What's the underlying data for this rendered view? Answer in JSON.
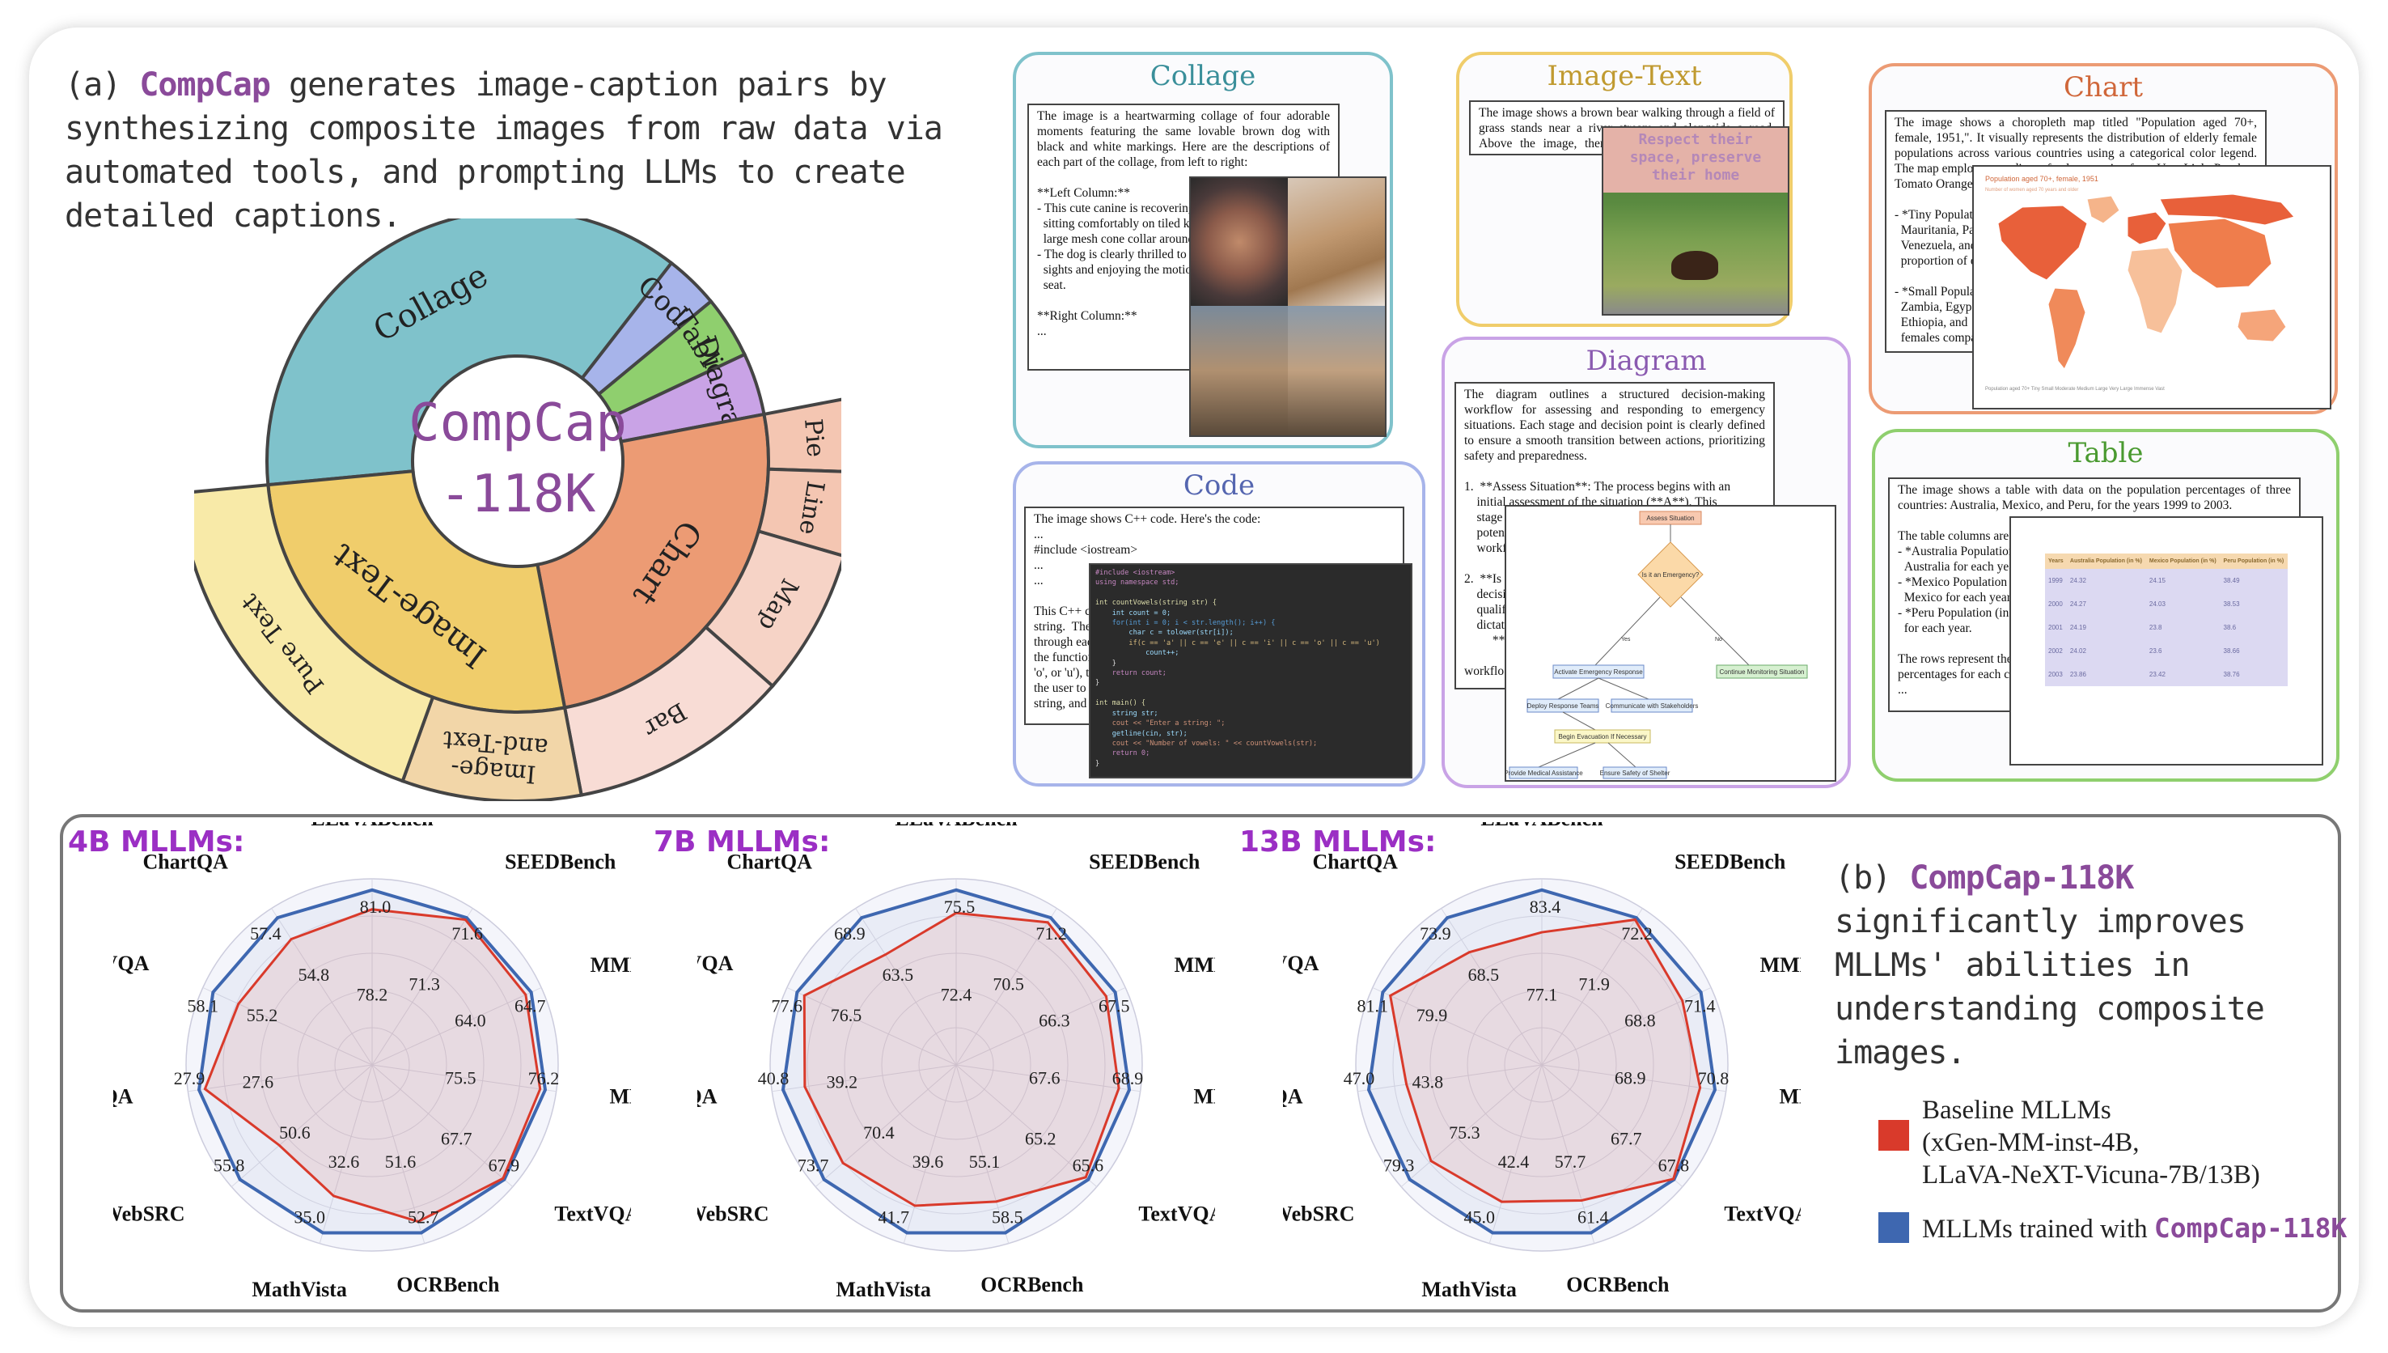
{
  "panel_a": {
    "caption_label": "(a) ",
    "caption_name": "CompCap",
    "caption_rest": " generates image-caption pairs by synthesizing composite images from raw data via automated tools, and prompting LLMs to create detailed captions.",
    "donut_center_line1": "CompCap",
    "donut_center_line2": "-118K",
    "inner_segments": [
      {
        "label": "Collage",
        "value": 37,
        "color": "#7fc2cb"
      },
      {
        "label": "Code",
        "value": 3.5,
        "color": "#a7b4ea"
      },
      {
        "label": "Table",
        "value": 4,
        "color": "#8fcf6e"
      },
      {
        "label": "Diagram",
        "value": 4,
        "color": "#c9a3e6"
      },
      {
        "label": "Chart",
        "value": 25,
        "color": "#ec9b74"
      },
      {
        "label": "Image-Text",
        "value": 26.5,
        "color": "#f0cd6b"
      }
    ],
    "outer_segments": [
      {
        "label": "Pie",
        "value": 3.5,
        "color": "#f4c6b2"
      },
      {
        "label": "Line",
        "value": 4,
        "color": "#f4c6b2"
      },
      {
        "label": "Map",
        "value": 7,
        "color": "#f6d3c6"
      },
      {
        "label": "Bar",
        "value": 10.5,
        "color": "#f8dcd5"
      },
      {
        "label": "Image-\nand-Text",
        "value": 8.5,
        "color": "#f2d6a8"
      },
      {
        "label": "Pure Text",
        "value": 18,
        "color": "#f8eaa8"
      }
    ]
  },
  "cards": {
    "collage": {
      "title": "Collage",
      "text": "The image is a heartwarming collage of four adorable moments featuring the same lovable brown dog with black and white markings. Here are the descriptions of each part of the collage, from left to right:\n\n**Left Column:**\n- This cute canine is recovering\n  sitting comfortably on tiled kit\n  large mesh cone collar around its\n- The dog is clearly thrilled to be\n  sights and enjoying the motion\n  seat.\n\n**Right Column:**\n..."
    },
    "image_text": {
      "title": "Image-Text",
      "text": "The image shows a brown bear walking through a field of grass stands near a river stream and alongside a road. Above the image, there is text \"Respect their space, preserve their home.\"",
      "overlay": "Respect their\nspace, preserve\ntheir home"
    },
    "chart": {
      "title": "Chart",
      "text": "The image shows a choropleth map titled \"Population aged 70+, female, 1951,\". It visually represents the distribution of elderly female populations across various countries using a categorical color legend. The map employs a gradient of colors ranging from Very Light Peach to Tomato Orange to indica\n\n- *Tiny Populat\n  Mauritania, Pak\n  Venezuela, and\n  proportion of eld\n\n- *Small Populat\n  Zambia, Egyp\n  Ethiopia, and\n  females compa\n...",
      "map_title": "Population aged 70+, female, 1951",
      "map_subtitle": "Number of women aged 70 years and older",
      "map_legend": "Population aged 70+    Tiny    Small    Moderate    Medium    Large    Very Large    Immense    Vast",
      "map_countries": [
        {
          "name": "North America",
          "fill": "#e8603a"
        },
        {
          "name": "Greenland",
          "fill": "#f5b48a"
        },
        {
          "name": "South America",
          "fill": "#f08a5a"
        },
        {
          "name": "Europe",
          "fill": "#e8603a"
        },
        {
          "name": "Africa",
          "fill": "#f7c09a"
        },
        {
          "name": "Asia",
          "fill": "#ef7d4c"
        },
        {
          "name": "Russia",
          "fill": "#e8603a"
        },
        {
          "name": "Australia",
          "fill": "#f5a57a"
        }
      ]
    },
    "diagram": {
      "title": "Diagram",
      "text": "The diagram outlines a structured decision-making workflow for assessing and responding to emergency situations. Each stage and decision point is clearly defined to ensure a smooth transition between actions, prioritizing safety and preparedness.\n\n1.  **Assess Situation**: The process begins with an\n    initial assessment of the situation (**A**). This\n    stage\n    poten\n    workf\n\n2.  **Is\n    decision\n    qualifies\n    dictates th\n         **\n\nworkflo\n...",
      "nodes": {
        "assess": "Assess Situation",
        "decision": "Is it an Emergency?",
        "yes": "Yes",
        "no": "No",
        "activate": "Activate Emergency Response",
        "monitor": "Continue Monitoring Situation",
        "deploy": "Deploy Response Teams",
        "communicate": "Communicate with Stakeholders",
        "evac": "Begin Evacuation If Necessary",
        "medical": "Provide Medical Assistance",
        "shelter": "Ensure Safety of Shelter"
      }
    },
    "code": {
      "title": "Code",
      "text": "The image shows C++ code. Here's the code:\n...\n#include <iostream>\n...\n...\n\nThis C++ c\nstring.  The\nthrough each\nthe function\n'o', or 'u'), th\nthe user to e\nstring, and th",
      "code_lines": [
        "#include <iostream>",
        "using namespace std;",
        "",
        "int countVowels(string str) {",
        "    int count = 0;",
        "    for(int i = 0; i < str.length(); i++) {",
        "        char c = tolower(str[i]);",
        "        if(c == 'a' || c == 'e' || c == 'i' || c == 'o' || c == 'u')",
        "            count++;",
        "    }",
        "    return count;",
        "}",
        "",
        "int main() {",
        "    string str;",
        "    cout << \"Enter a string: \";",
        "    getline(cin, str);",
        "    cout << \"Number of vowels: \" << countVowels(str);",
        "    return 0;",
        "}"
      ]
    },
    "table": {
      "title": "Table",
      "text": "The image shows a table with data on the population percentages of three countries: Australia, Mexico, and Peru, for the years 1999 to 2003.\n\nThe table columns are a\n- *Australia Population\n  Australia for each year.\n- *Mexico Population (\n  Mexico for each year.\n- *Peru Population (in %\n  for each year.\n\nThe rows represent the\npercentages for each co\n...",
      "columns": [
        "Years",
        "Australia Population (in %)",
        "Mexico Population (in %)",
        "Peru Population (in %)"
      ],
      "rows": [
        [
          "1999",
          "24.32",
          "24.15",
          "38.49"
        ],
        [
          "2000",
          "24.27",
          "24.03",
          "38.53"
        ],
        [
          "2001",
          "24.19",
          "23.8",
          "38.6"
        ],
        [
          "2002",
          "24.02",
          "23.6",
          "38.66"
        ],
        [
          "2003",
          "23.86",
          "23.42",
          "38.76"
        ]
      ]
    }
  },
  "colors": {
    "baseline": "#d93a2b",
    "compcap": "#3e67b0",
    "title_purple": "#9b2fc4"
  },
  "chart_data": [
    {
      "type": "radar",
      "title": "4B MLLMs:",
      "axes": [
        "LLaVABench",
        "SEEDBench",
        "MME",
        "MMBench",
        "TextVQA",
        "OCRBench",
        "MathVista",
        "WebSRC",
        "InfoVQA",
        "DocVQA",
        "ChartQA"
      ],
      "series": [
        {
          "name": "Baseline MLLMs",
          "values": [
            78.2,
            71.3,
            64.0,
            75.5,
            67.7,
            51.6,
            32.6,
            50.6,
            27.6,
            55.2,
            54.8
          ]
        },
        {
          "name": "MLLMs trained with CompCap-118K",
          "values": [
            81.0,
            71.6,
            64.7,
            76.2,
            67.9,
            52.7,
            35.0,
            55.8,
            27.9,
            58.1,
            57.4
          ]
        }
      ]
    },
    {
      "type": "radar",
      "title": "7B MLLMs:",
      "axes": [
        "LLaVABench",
        "SEEDBench",
        "MME",
        "MMBench",
        "TextVQA",
        "OCRBench",
        "MathVista",
        "WebSRC",
        "InfoVQA",
        "DocVQA",
        "ChartQA"
      ],
      "series": [
        {
          "name": "Baseline MLLMs",
          "values": [
            72.4,
            70.5,
            66.3,
            67.6,
            65.2,
            55.1,
            39.6,
            70.4,
            39.2,
            76.5,
            63.5
          ]
        },
        {
          "name": "MLLMs trained with CompCap-118K",
          "values": [
            75.5,
            71.2,
            67.5,
            68.9,
            65.6,
            58.5,
            41.7,
            73.7,
            40.8,
            77.6,
            68.9
          ]
        }
      ]
    },
    {
      "type": "radar",
      "title": "13B MLLMs:",
      "axes": [
        "LLaVABench",
        "SEEDBench",
        "MME",
        "MMBench",
        "TextVQA",
        "OCRBench",
        "MathVista",
        "WebSRC",
        "InfoVQA",
        "DocVQA",
        "ChartQA"
      ],
      "series": [
        {
          "name": "Baseline MLLMs",
          "values": [
            77.1,
            71.9,
            68.8,
            68.9,
            67.7,
            57.7,
            42.4,
            75.3,
            43.8,
            79.9,
            68.5
          ]
        },
        {
          "name": "MLLMs trained with CompCap-118K",
          "values": [
            83.4,
            72.2,
            71.4,
            70.8,
            67.8,
            61.4,
            45.0,
            79.3,
            47.0,
            81.1,
            73.9
          ]
        }
      ]
    }
  ],
  "panel_b": {
    "caption_label": "(b) ",
    "caption_name": "CompCap-118K",
    "caption_rest": " significantly improves MLLMs' abilities in understanding composite images.",
    "legend": {
      "baseline_line1": "Baseline MLLMs",
      "baseline_line2": "(xGen-MM-inst-4B,",
      "baseline_line3": "LLaVA-NeXT-Vicuna-7B/13B)",
      "compcap_prefix": "MLLMs trained with ",
      "compcap_name": "CompCap-118K"
    }
  }
}
